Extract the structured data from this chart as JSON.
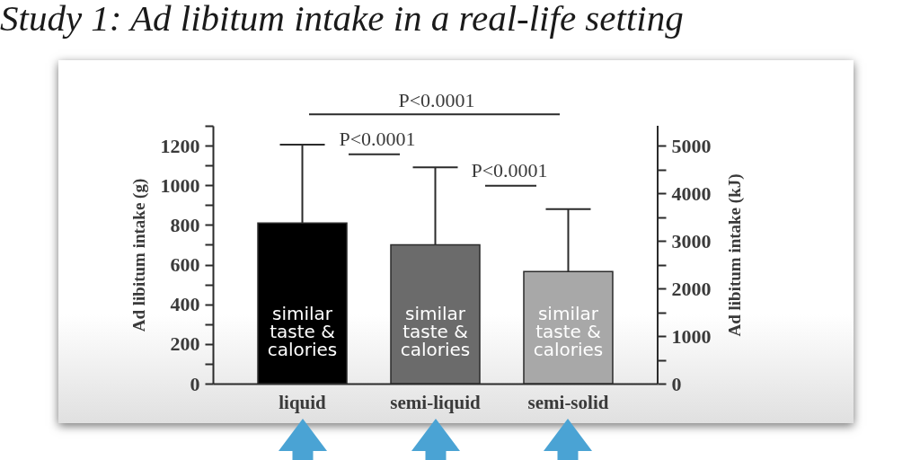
{
  "chart_data": {
    "type": "bar",
    "title": "Study 1: Ad libitum intake in a real-life setting",
    "ylabel": "Ad libitum intake (g)",
    "y2label": "Ad libitum intake (kJ)",
    "categories": [
      "liquid",
      "semi-liquid",
      "semi-solid"
    ],
    "values": [
      810,
      700,
      565
    ],
    "colors": [
      "#000000",
      "#6b6b6b",
      "#a8a8a8"
    ],
    "errors": [
      [
        810,
        1205
      ],
      [
        700,
        1090
      ],
      [
        565,
        880
      ]
    ],
    "ylim": [
      0,
      1300
    ],
    "yticks": [
      0,
      {
        "value": 100,
        "label": null
      },
      200,
      {
        "value": 300,
        "label": null
      },
      400,
      {
        "value": 500,
        "label": null
      },
      600,
      {
        "value": 700,
        "label": null
      },
      800,
      {
        "value": 900,
        "label": null
      },
      1000,
      {
        "value": 1100,
        "label": null
      },
      1200,
      {
        "value": 1300,
        "label": null
      }
    ],
    "y2lim": [
      0,
      5420
    ],
    "y2ticks": [
      0,
      {
        "value": 500,
        "label": null
      },
      1000,
      {
        "value": 1500,
        "label": null
      },
      2000,
      {
        "value": 2500,
        "label": null
      },
      3000,
      {
        "value": 3500,
        "label": null
      },
      4000,
      {
        "value": 4500,
        "label": null
      },
      5000
    ],
    "annotations": [
      "similar\ntaste &\ncalories",
      "similar\ntaste &\ncalories",
      "similar\ntaste &\ncalories",
      "P<0.0001",
      "P<0.0001",
      "P<0.0001"
    ]
  }
}
